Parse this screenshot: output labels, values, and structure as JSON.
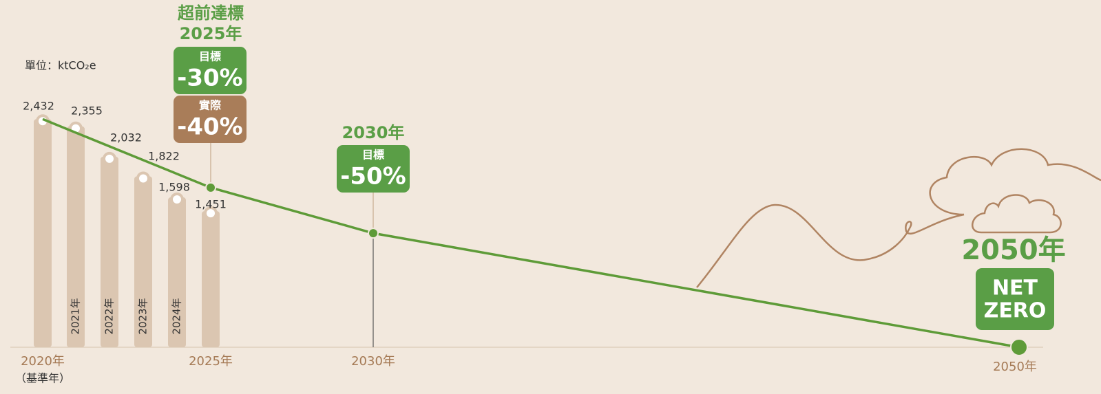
{
  "chart_data": {
    "type": "bar",
    "unit_label": "單位：ktCO₂e",
    "categories": [
      null,
      "2021年",
      "2022年",
      "2023年",
      "2024年",
      null
    ],
    "values": [
      2432,
      2355,
      2032,
      1822,
      1598,
      1451
    ],
    "value_labels": [
      "2,432",
      "2,355",
      "2,032",
      "1,822",
      "1,598",
      "1,451"
    ],
    "color": "#dbc6b1",
    "ylim": [
      0,
      2500
    ],
    "x_labels": [
      "2020年",
      "2025年",
      "2030年",
      "2050年"
    ],
    "baseline_note": "（基準年）",
    "target_line": {
      "values": [
        2432,
        1702,
        1216,
        0
      ],
      "color": "#5e9b38"
    },
    "callouts": [
      {
        "heading": "超前達標",
        "year": "2025年",
        "items": [
          {
            "label": "目標",
            "value": {
              "value": -30,
              "label": "-30%"
            },
            "color": "#5a9e46"
          },
          {
            "label": "實際",
            "value": {
              "value": -40,
              "label": "-40%"
            },
            "color": "#a97d59"
          }
        ]
      },
      {
        "year": "2030年",
        "items": [
          {
            "label": "目標",
            "value": {
              "value": -50,
              "label": "-50%"
            },
            "color": "#5a9e46"
          }
        ]
      },
      {
        "year": "2050年",
        "items": [
          {
            "lines": [
              "NET",
              "ZERO"
            ],
            "color": "#5a9e46"
          }
        ]
      }
    ]
  }
}
